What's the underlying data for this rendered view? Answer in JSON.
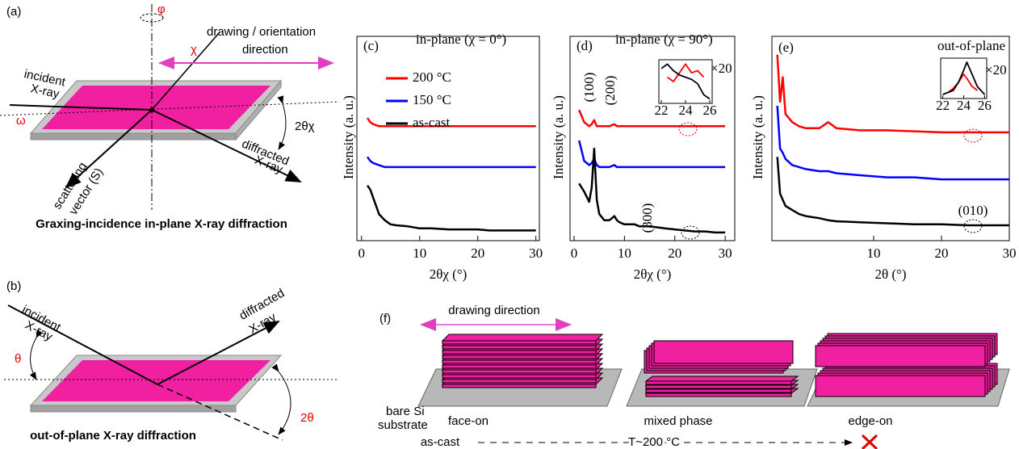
{
  "panels": {
    "a": {
      "label": "(a)",
      "phi": "φ",
      "chi": "χ",
      "drawing_direction": [
        "drawing / orientation",
        "direction"
      ],
      "incident": [
        "incident",
        "X-ray"
      ],
      "omega": "ω",
      "two_theta_chi": "2θχ",
      "diffracted": [
        "diffracted",
        "X-ray"
      ],
      "scattering": [
        "scattering",
        "vector (S)"
      ],
      "caption": "Graxing-incidence in-plane X-ray diffraction"
    },
    "b": {
      "label": "(b)",
      "incident": [
        "incident",
        "X-ray"
      ],
      "diffracted": [
        "diffracted",
        "X-ray"
      ],
      "theta": "θ",
      "two_theta": "2θ",
      "caption": "out-of-plane X-ray diffraction"
    },
    "f": {
      "label": "(f)",
      "drawing_direction": "drawing direction",
      "substrate": [
        "bare Si",
        "substrate"
      ],
      "face_on": "face-on",
      "mixed": "mixed phase",
      "edge_on": "edge-on",
      "start": "as-cast",
      "end": "T~200 °C"
    }
  },
  "chart_data": [
    {
      "type": "line",
      "panel_label": "(c)",
      "title": "in-plane (χ = 0°)",
      "x_label": "2θχ (°)",
      "y_label": "Intensity (a. u.)",
      "xlim": [
        -0.8,
        30.6
      ],
      "ylim": [
        0,
        10
      ],
      "xticks": [
        0,
        10,
        20,
        30
      ],
      "x": [
        1,
        1.5,
        2,
        3,
        4,
        5,
        6,
        8,
        10,
        12,
        15,
        18,
        20,
        22,
        24,
        26,
        28,
        30
      ],
      "series": [
        {
          "name": "200 °C",
          "color": "#ff0000",
          "values": [
            6.0,
            5.8,
            5.7,
            5.6,
            5.6,
            5.6,
            5.6,
            5.6,
            5.6,
            5.6,
            5.6,
            5.6,
            5.6,
            5.6,
            5.6,
            5.6,
            5.6,
            5.6
          ]
        },
        {
          "name": "150 °C",
          "color": "#0000ff",
          "values": [
            4.1,
            3.9,
            3.8,
            3.7,
            3.6,
            3.6,
            3.6,
            3.6,
            3.6,
            3.6,
            3.6,
            3.6,
            3.6,
            3.6,
            3.6,
            3.6,
            3.6,
            3.6
          ]
        },
        {
          "name": "as-cast",
          "color": "#000000",
          "values": [
            2.7,
            2.5,
            2.1,
            1.3,
            1.0,
            0.8,
            0.75,
            0.7,
            0.6,
            0.6,
            0.55,
            0.55,
            0.55,
            0.5,
            0.5,
            0.5,
            0.5,
            0.5
          ]
        }
      ]
    },
    {
      "type": "line",
      "panel_label": "(d)",
      "title": "in-plane (χ = 90°)",
      "x_label": "2θχ (°)",
      "y_label": "Intensity (a. u.)",
      "xlim": [
        -0.8,
        31.9
      ],
      "ylim": [
        0,
        10
      ],
      "xticks": [
        0,
        10,
        20,
        30
      ],
      "x": [
        1,
        2,
        3,
        3.5,
        4,
        4.5,
        5,
        6,
        7,
        8,
        8.5,
        9,
        10,
        11,
        12,
        13,
        15,
        18,
        20,
        22,
        24,
        26,
        28,
        30
      ],
      "series": [
        {
          "color": "#ff0000",
          "values": [
            6.4,
            5.8,
            5.6,
            5.7,
            5.9,
            5.6,
            5.6,
            5.6,
            5.6,
            5.7,
            5.6,
            5.6,
            5.6,
            5.6,
            5.6,
            5.6,
            5.6,
            5.6,
            5.6,
            5.6,
            5.6,
            5.6,
            5.6,
            5.6
          ]
        },
        {
          "color": "#0000ff",
          "values": [
            4.9,
            3.9,
            3.7,
            3.8,
            4.0,
            3.7,
            3.6,
            3.6,
            3.6,
            3.7,
            3.6,
            3.6,
            3.6,
            3.6,
            3.6,
            3.6,
            3.6,
            3.6,
            3.6,
            3.6,
            3.6,
            3.6,
            3.6,
            3.6
          ]
        },
        {
          "color": "#000000",
          "values": [
            2.8,
            2.4,
            1.9,
            2.6,
            4.5,
            2.0,
            1.3,
            1.0,
            1.0,
            1.2,
            1.0,
            0.9,
            0.8,
            0.8,
            0.8,
            0.7,
            0.7,
            0.6,
            0.55,
            0.5,
            0.45,
            0.45,
            0.4,
            0.4
          ]
        }
      ],
      "annotations": [
        "(100)",
        "(200)",
        "(300)"
      ],
      "inset": {
        "annotation": "×20",
        "xlim": [
          21.8,
          26.2
        ],
        "ylim": [
          0,
          10
        ],
        "xticks": [
          22,
          24,
          26
        ],
        "x": [
          22,
          22.5,
          23,
          23.5,
          24,
          24.5,
          25,
          25.5,
          26
        ],
        "series": [
          {
            "color": "#ff0000",
            "values": [
              null,
              6,
              5,
              7,
              9,
              7,
              7.5,
              6,
              null
            ]
          },
          {
            "color": "#000000",
            "values": [
              8,
              9,
              7.5,
              6.5,
              6,
              5.5,
              4.5,
              2,
              1
            ]
          }
        ]
      }
    },
    {
      "type": "line",
      "panel_label": "(e)",
      "title": "out-of-plane",
      "x_label": "2θ (°)",
      "y_label": "Intensity (a. u.)",
      "xlim": [
        -5,
        30
      ],
      "ylim": [
        0,
        10
      ],
      "xticks": [
        10,
        20,
        30
      ],
      "x": [
        -4.2,
        -3.8,
        -3.4,
        -3,
        -2,
        -1,
        0,
        2,
        3.3,
        4.5,
        8,
        12,
        16,
        20,
        24,
        28,
        30
      ],
      "series": [
        {
          "color": "#ff0000",
          "values": [
            9.1,
            6.8,
            8.0,
            6.2,
            5.8,
            5.6,
            5.5,
            5.5,
            5.8,
            5.5,
            5.4,
            5.4,
            5.35,
            5.3,
            5.3,
            5.3,
            5.3
          ]
        },
        {
          "color": "#0000ff",
          "values": [
            6.6,
            4.5,
            4.3,
            4.0,
            3.7,
            3.6,
            3.5,
            3.4,
            3.4,
            3.3,
            3.2,
            3.1,
            3.1,
            3.0,
            3.0,
            3.0,
            3.0
          ]
        },
        {
          "color": "#000000",
          "values": [
            4.1,
            2.3,
            2.0,
            1.7,
            1.5,
            1.3,
            1.2,
            1.1,
            1.0,
            0.95,
            0.9,
            0.85,
            0.8,
            0.8,
            0.75,
            0.75,
            0.75
          ]
        }
      ],
      "annotations": [
        "(010)"
      ],
      "inset": {
        "annotation": "×20",
        "xlim": [
          21.8,
          26.2
        ],
        "ylim": [
          0,
          10
        ],
        "xticks": [
          22,
          24,
          26
        ],
        "x": [
          22,
          22.5,
          23,
          23.5,
          24,
          24.3,
          24.8,
          25.3,
          26
        ],
        "series": [
          {
            "color": "#ff0000",
            "values": [
              null,
              1.5,
              2.5,
              4,
              6,
              5,
              3,
              2,
              null
            ]
          },
          {
            "color": "#000000",
            "values": [
              1,
              1.5,
              2,
              4,
              7,
              9,
              6,
              3,
              1
            ]
          }
        ]
      }
    }
  ]
}
